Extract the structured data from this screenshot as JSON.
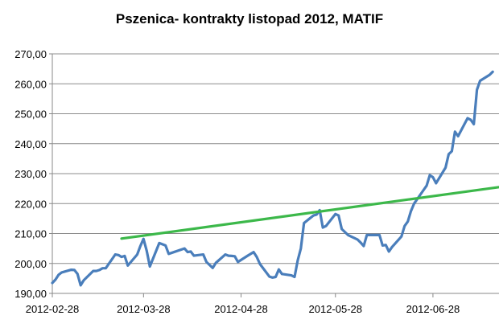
{
  "chart_data": {
    "type": "line",
    "title": "Pszenica- kontrakty listopad 2012, MATIF",
    "xlabel": "",
    "ylabel": "",
    "x_range": [
      "2012-02-28",
      "2012-07-19"
    ],
    "ylim": [
      190,
      270
    ],
    "y_ticks": [
      190,
      200,
      210,
      220,
      230,
      240,
      250,
      260,
      270
    ],
    "y_tick_labels": [
      "190,00",
      "200,00",
      "210,00",
      "220,00",
      "230,00",
      "240,00",
      "250,00",
      "260,00",
      "270,00"
    ],
    "x_ticks": [
      "2012-02-28",
      "2012-03-28",
      "2012-04-28",
      "2012-05-28",
      "2012-06-28"
    ],
    "x_tick_labels": [
      "2012-02-28",
      "2012-03-28",
      "2012-04-28",
      "2012-05-28",
      "2012-06-28"
    ],
    "grid": "horizontal",
    "legend": "none",
    "series": [
      {
        "color": "#4a7ebb",
        "points": [
          [
            "2012-02-28",
            193.5
          ],
          [
            "2012-02-29",
            194.6
          ],
          [
            "2012-03-01",
            196.2
          ],
          [
            "2012-03-02",
            197.0
          ],
          [
            "2012-03-05",
            197.9
          ],
          [
            "2012-03-06",
            197.8
          ],
          [
            "2012-03-07",
            196.5
          ],
          [
            "2012-03-08",
            192.7
          ],
          [
            "2012-03-09",
            194.4
          ],
          [
            "2012-03-12",
            197.5
          ],
          [
            "2012-03-13",
            197.5
          ],
          [
            "2012-03-14",
            197.8
          ],
          [
            "2012-03-15",
            198.4
          ],
          [
            "2012-03-16",
            198.4
          ],
          [
            "2012-03-19",
            203.0
          ],
          [
            "2012-03-20",
            202.8
          ],
          [
            "2012-03-21",
            202.2
          ],
          [
            "2012-03-22",
            202.5
          ],
          [
            "2012-03-23",
            199.3
          ],
          [
            "2012-03-26",
            203.0
          ],
          [
            "2012-03-27",
            205.8
          ],
          [
            "2012-03-28",
            208.2
          ],
          [
            "2012-03-29",
            204.2
          ],
          [
            "2012-03-30",
            199.0
          ],
          [
            "2012-04-02",
            206.8
          ],
          [
            "2012-04-03",
            206.4
          ],
          [
            "2012-04-04",
            206.0
          ],
          [
            "2012-04-05",
            203.2
          ],
          [
            "2012-04-10",
            205.0
          ],
          [
            "2012-04-11",
            203.8
          ],
          [
            "2012-04-12",
            204.0
          ],
          [
            "2012-04-13",
            202.6
          ],
          [
            "2012-04-16",
            203.0
          ],
          [
            "2012-04-17",
            200.5
          ],
          [
            "2012-04-18",
            199.5
          ],
          [
            "2012-04-19",
            198.5
          ],
          [
            "2012-04-20",
            200.2
          ],
          [
            "2012-04-23",
            203.0
          ],
          [
            "2012-04-24",
            202.6
          ],
          [
            "2012-04-25",
            202.5
          ],
          [
            "2012-04-26",
            202.4
          ],
          [
            "2012-04-27",
            200.5
          ],
          [
            "2012-04-30",
            202.5
          ],
          [
            "2012-05-02",
            203.8
          ],
          [
            "2012-05-03",
            202.2
          ],
          [
            "2012-05-04",
            199.8
          ],
          [
            "2012-05-07",
            195.6
          ],
          [
            "2012-05-08",
            195.3
          ],
          [
            "2012-05-09",
            195.5
          ],
          [
            "2012-05-10",
            198.0
          ],
          [
            "2012-05-11",
            196.5
          ],
          [
            "2012-05-14",
            196.0
          ],
          [
            "2012-05-15",
            195.5
          ],
          [
            "2012-05-16",
            201.0
          ],
          [
            "2012-05-17",
            205.0
          ],
          [
            "2012-05-18",
            213.5
          ],
          [
            "2012-05-21",
            216.0
          ],
          [
            "2012-05-22",
            216.3
          ],
          [
            "2012-05-23",
            217.8
          ],
          [
            "2012-05-24",
            212.0
          ],
          [
            "2012-05-25",
            212.5
          ],
          [
            "2012-05-28",
            216.5
          ],
          [
            "2012-05-29",
            216.0
          ],
          [
            "2012-05-30",
            211.5
          ],
          [
            "2012-05-31",
            210.5
          ],
          [
            "2012-06-01",
            209.5
          ],
          [
            "2012-06-04",
            208.0
          ],
          [
            "2012-06-05",
            207.0
          ],
          [
            "2012-06-06",
            205.8
          ],
          [
            "2012-06-07",
            209.5
          ],
          [
            "2012-06-08",
            209.5
          ],
          [
            "2012-06-11",
            209.5
          ],
          [
            "2012-06-12",
            206.0
          ],
          [
            "2012-06-13",
            206.2
          ],
          [
            "2012-06-14",
            204.0
          ],
          [
            "2012-06-15",
            205.5
          ],
          [
            "2012-06-18",
            209.0
          ],
          [
            "2012-06-19",
            212.5
          ],
          [
            "2012-06-20",
            214.0
          ],
          [
            "2012-06-21",
            217.5
          ],
          [
            "2012-06-22",
            220.0
          ],
          [
            "2012-06-25",
            224.5
          ],
          [
            "2012-06-26",
            226.0
          ],
          [
            "2012-06-27",
            229.5
          ],
          [
            "2012-06-28",
            228.8
          ],
          [
            "2012-06-29",
            226.8
          ],
          [
            "2012-07-02",
            232.0
          ],
          [
            "2012-07-03",
            236.5
          ],
          [
            "2012-07-04",
            237.5
          ],
          [
            "2012-07-05",
            244.0
          ],
          [
            "2012-07-06",
            242.5
          ],
          [
            "2012-07-09",
            248.5
          ],
          [
            "2012-07-10",
            248.0
          ],
          [
            "2012-07-11",
            246.5
          ],
          [
            "2012-07-12",
            258.0
          ],
          [
            "2012-07-13",
            261.0
          ],
          [
            "2012-07-16",
            263.0
          ],
          [
            "2012-07-17",
            264.0
          ]
        ]
      },
      {
        "color": "#3cb84a",
        "type": "trend",
        "points": [
          [
            "2012-03-21",
            208.3
          ],
          [
            "2012-07-19",
            225.5
          ]
        ]
      }
    ]
  }
}
